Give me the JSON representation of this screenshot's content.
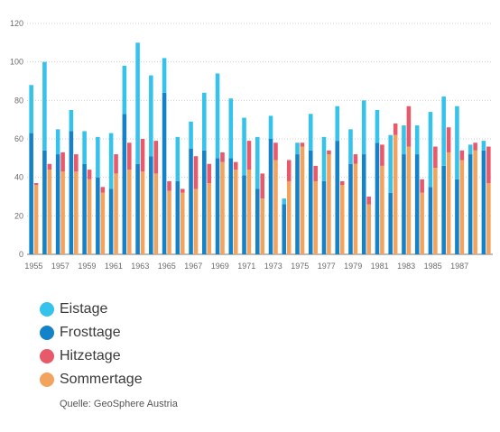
{
  "chart_data": {
    "type": "bar",
    "ylim": [
      0,
      120
    ],
    "yticks": [
      0,
      20,
      40,
      60,
      80,
      100,
      120
    ],
    "categories": [
      "1955",
      "1956",
      "1957",
      "1958",
      "1959",
      "1960",
      "1961",
      "1962",
      "1963",
      "1964",
      "1965",
      "1966",
      "1967",
      "1968",
      "1969",
      "1970",
      "1971",
      "1972",
      "1973",
      "1974",
      "1975",
      "1976",
      "1977",
      "1978",
      "1979",
      "1980",
      "1981",
      "1982",
      "1983",
      "1984",
      "1985",
      "1986",
      "1987",
      "1988",
      "1989"
    ],
    "xtick_labels": [
      "1955",
      "",
      "1957",
      "",
      "1959",
      "",
      "1961",
      "",
      "1963",
      "",
      "1965",
      "",
      "1967",
      "",
      "1969",
      "",
      "1971",
      "",
      "1973",
      "",
      "1975",
      "",
      "1977",
      "",
      "1979",
      "",
      "1981",
      "",
      "1983",
      "",
      "1985",
      "",
      "1987",
      "",
      ""
    ],
    "series": [
      {
        "name": "Eistage",
        "color": "#35c3ec",
        "stack": "winter",
        "values": [
          25,
          46,
          13,
          11,
          17,
          21,
          29,
          25,
          63,
          42,
          18,
          23,
          14,
          30,
          44,
          31,
          30,
          27,
          12,
          3,
          6,
          19,
          23,
          18,
          18,
          28,
          17,
          30,
          15,
          15,
          39,
          36,
          38,
          5,
          5
        ]
      },
      {
        "name": "Frosttage",
        "color": "#1482c9",
        "stack": "winter",
        "values": [
          63,
          54,
          52,
          64,
          47,
          40,
          34,
          73,
          47,
          51,
          84,
          38,
          55,
          54,
          50,
          50,
          41,
          34,
          60,
          26,
          52,
          54,
          38,
          59,
          47,
          52,
          58,
          32,
          52,
          52,
          35,
          46,
          39,
          52,
          54
        ]
      },
      {
        "name": "Hitzetage",
        "color": "#e8596a",
        "stack": "summer",
        "values": [
          1,
          3,
          10,
          9,
          5,
          3,
          10,
          14,
          17,
          17,
          5,
          2,
          17,
          10,
          5,
          4,
          15,
          13,
          9,
          11,
          2,
          8,
          2,
          2,
          5,
          4,
          11,
          6,
          21,
          7,
          11,
          13,
          5,
          4,
          19
        ]
      },
      {
        "name": "Sommertage",
        "color": "#f2a35e",
        "stack": "summer",
        "values": [
          36,
          44,
          43,
          43,
          39,
          32,
          42,
          44,
          43,
          42,
          33,
          32,
          34,
          37,
          48,
          44,
          44,
          29,
          49,
          38,
          56,
          38,
          52,
          36,
          47,
          26,
          46,
          62,
          56,
          32,
          45,
          53,
          49,
          54,
          37
        ]
      }
    ]
  },
  "legend": [
    {
      "label": "Eistage",
      "color": "#35c3ec"
    },
    {
      "label": "Frosttage",
      "color": "#1482c9"
    },
    {
      "label": "Hitzetage",
      "color": "#e8596a"
    },
    {
      "label": "Sommertage",
      "color": "#f2a35e"
    }
  ],
  "source": "Quelle: GeoSphere Austria"
}
